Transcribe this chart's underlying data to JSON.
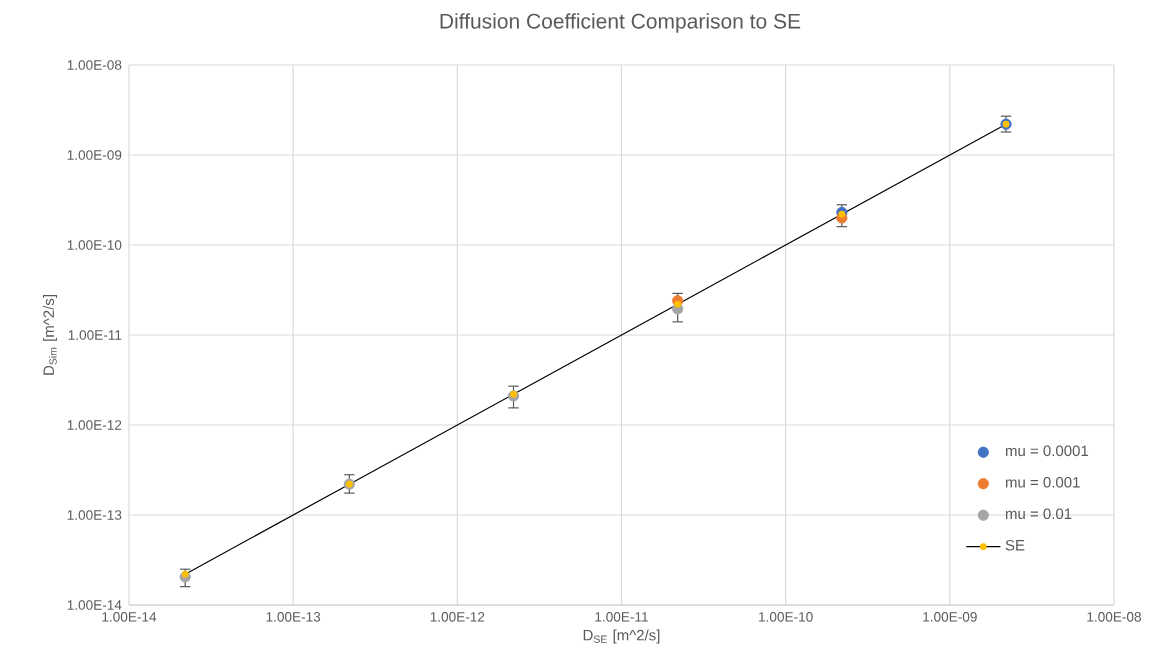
{
  "chart_data": {
    "type": "scatter",
    "title": "Diffusion Coefficient Comparison to SE",
    "xlabel": "D$_{SE}$ [m^2/s]",
    "ylabel": "D$_{Sim}$ [m^2/s]",
    "x": [
      2.2e-14,
      2.2e-13,
      2.2e-12,
      2.2e-11,
      2.2e-10,
      2.2e-09
    ],
    "series": [
      {
        "name": "mu = 0.0001",
        "color": "#4472c4",
        "values": [
          null,
          null,
          null,
          null,
          2.3e-10,
          2.2e-09
        ],
        "errors": [
          null,
          null,
          null,
          null,
          [
            1.6e-10,
            2.8e-10
          ],
          [
            1.8e-09,
            2.7e-09
          ]
        ]
      },
      {
        "name": "mu = 0.001",
        "color": "#ed7d31",
        "values": [
          null,
          null,
          null,
          2.4e-11,
          2e-10,
          null
        ]
      },
      {
        "name": "mu = 0.01",
        "color": "#a5a5a5",
        "values": [
          2.05e-14,
          2.2e-13,
          2.1e-12,
          1.95e-11,
          null,
          null
        ],
        "errors": [
          [
            1.6e-14,
            2.5e-14
          ],
          [
            1.75e-13,
            2.8e-13
          ],
          [
            1.55e-12,
            2.7e-12
          ],
          [
            1.4e-11,
            2.9e-11
          ],
          null,
          null
        ]
      },
      {
        "name": "SE",
        "type": "line",
        "color": "#ffc000",
        "values": [
          2.2e-14,
          2.2e-13,
          2.2e-12,
          2.2e-11,
          2.2e-10,
          2.2e-09
        ]
      }
    ],
    "log": "xy",
    "marker": "circle",
    "grid": true,
    "legend": "bottom right",
    "xlim": [
      1e-14,
      1e-08
    ],
    "ylim": [
      1e-14,
      1e-08
    ],
    "xticks": [
      {
        "value": 1e-14,
        "label": "1.00E-14"
      },
      {
        "value": 1e-13,
        "label": "1.00E-13"
      },
      {
        "value": 1e-12,
        "label": "1.00E-12"
      },
      {
        "value": 1e-11,
        "label": "1.00E-11"
      },
      {
        "value": 1e-10,
        "label": "1.00E-10"
      },
      {
        "value": 1e-09,
        "label": "1.00E-09"
      },
      {
        "value": 1e-08,
        "label": "1.00E-08"
      }
    ],
    "yticks": [
      {
        "value": 1e-14,
        "label": "1.00E-14"
      },
      {
        "value": 1e-13,
        "label": "1.00E-13"
      },
      {
        "value": 1e-12,
        "label": "1.00E-12"
      },
      {
        "value": 1e-11,
        "label": "1.00E-11"
      },
      {
        "value": 1e-10,
        "label": "1.00E-10"
      },
      {
        "value": 1e-09,
        "label": "1.00E-09"
      },
      {
        "value": 1e-08,
        "label": "1.00E-08"
      }
    ]
  }
}
